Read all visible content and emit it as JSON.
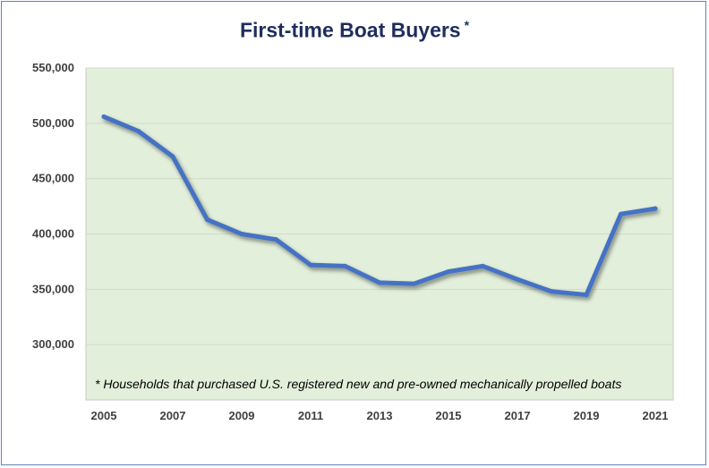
{
  "chart_data": {
    "type": "line",
    "title": "First-time Boat Buyers",
    "title_marker": "*",
    "xlabel": "",
    "ylabel": "",
    "x": [
      2005,
      2006,
      2007,
      2008,
      2009,
      2010,
      2011,
      2012,
      2013,
      2014,
      2015,
      2016,
      2017,
      2018,
      2019,
      2020,
      2021
    ],
    "x_tick_labels": [
      "2005",
      "2007",
      "2009",
      "2011",
      "2013",
      "2015",
      "2017",
      "2019",
      "2021"
    ],
    "y_tick_labels": [
      "550,000",
      "500,000",
      "450,000",
      "400,000",
      "350,000",
      "300,000"
    ],
    "ylim": [
      250000,
      550000
    ],
    "series": [
      {
        "values": [
          506000,
          493000,
          470000,
          413000,
          400000,
          395000,
          372000,
          371000,
          356000,
          355000,
          366000,
          371000,
          359000,
          348000,
          345000,
          418000,
          423000
        ]
      }
    ],
    "annotation": "* Households that purchased U.S. registered new and pre-owned mechanically propelled boats",
    "grid": true,
    "colors": {
      "line": "#4472c4",
      "plot_bg": "#e2efda",
      "title": "#1f2d5c"
    }
  }
}
